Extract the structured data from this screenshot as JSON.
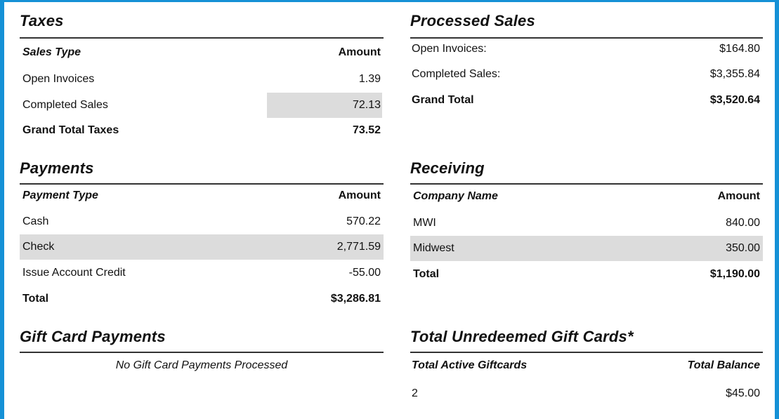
{
  "taxes": {
    "title": "Taxes",
    "header": {
      "label": "Sales Type",
      "amount": "Amount"
    },
    "rows": [
      {
        "label": "Open Invoices",
        "amount": "1.39"
      },
      {
        "label": "Completed Sales",
        "amount": "72.13"
      }
    ],
    "total": {
      "label": "Grand Total Taxes",
      "amount": "73.52"
    }
  },
  "processed_sales": {
    "title": "Processed Sales",
    "rows": [
      {
        "label": "Open Invoices:",
        "amount": "$164.80"
      },
      {
        "label": "Completed Sales:",
        "amount": "$3,355.84"
      }
    ],
    "total": {
      "label": "Grand Total",
      "amount": "$3,520.64"
    }
  },
  "payments": {
    "title": "Payments",
    "header": {
      "label": "Payment Type",
      "amount": "Amount"
    },
    "rows": [
      {
        "label": "Cash",
        "amount": "570.22"
      },
      {
        "label": "Check",
        "amount": "2,771.59"
      },
      {
        "label": "Issue Account Credit",
        "amount": "-55.00"
      }
    ],
    "total": {
      "label": "Total",
      "amount": "$3,286.81"
    }
  },
  "receiving": {
    "title": "Receiving",
    "header": {
      "label": "Company Name",
      "amount": "Amount"
    },
    "rows": [
      {
        "label": "MWI",
        "amount": "840.00"
      },
      {
        "label": "Midwest",
        "amount": "350.00"
      }
    ],
    "total": {
      "label": "Total",
      "amount": "$1,190.00"
    }
  },
  "gift_card_payments": {
    "title": "Gift Card Payments",
    "note": "No Gift Card Payments Processed"
  },
  "unredeemed_gift_cards": {
    "title": "Total Unredeemed Gift Cards*",
    "header": {
      "label": "Total Active Giftcards",
      "amount": "Total Balance"
    },
    "rows": [
      {
        "label": "2",
        "amount": "$45.00"
      }
    ]
  },
  "colors": {
    "frame": "#1591d6",
    "shade": "#dcdcdc"
  }
}
